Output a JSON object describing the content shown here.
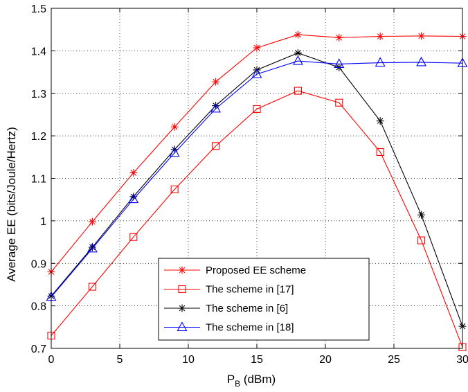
{
  "chart_data": {
    "type": "line",
    "xlabel_main": "P",
    "xlabel_sub": "B",
    "xlabel_rest": " (dBm)",
    "ylabel": "Average EE (bits/Joule/Hertz)",
    "xlim": [
      0,
      30
    ],
    "ylim": [
      0.7,
      1.5
    ],
    "xticks": [
      0,
      5,
      10,
      15,
      20,
      25,
      30
    ],
    "yticks": [
      0.7,
      0.8,
      0.9,
      1,
      1.1,
      1.2,
      1.3,
      1.4,
      1.5
    ],
    "ytick_labels": [
      "0.7",
      "0.8",
      "0.9",
      "1",
      "1.1",
      "1.2",
      "1.3",
      "1.4",
      "1.5"
    ],
    "grid": true,
    "legend_position": "bottom-center",
    "x": [
      0,
      3,
      6,
      9,
      12,
      15,
      18,
      21,
      24,
      27,
      30
    ],
    "series": [
      {
        "name": "Proposed EE scheme",
        "color": "#ff0000",
        "marker": "asterisk",
        "values": [
          0.88,
          0.998,
          1.113,
          1.221,
          1.327,
          1.407,
          1.438,
          1.431,
          1.434,
          1.435,
          1.434
        ]
      },
      {
        "name": "The scheme in [17]",
        "color": "#ff0000",
        "marker": "square",
        "values": [
          0.73,
          0.845,
          0.962,
          1.074,
          1.176,
          1.263,
          1.306,
          1.278,
          1.162,
          0.954,
          0.703
        ]
      },
      {
        "name": "The scheme in [6]",
        "color": "#000000",
        "marker": "asterisk",
        "values": [
          0.823,
          0.938,
          1.057,
          1.168,
          1.271,
          1.355,
          1.395,
          1.361,
          1.235,
          1.014,
          0.752
        ]
      },
      {
        "name": "The scheme in [18]",
        "color": "#0000ff",
        "marker": "triangle",
        "values": [
          0.821,
          0.935,
          1.051,
          1.16,
          1.264,
          1.345,
          1.376,
          1.369,
          1.372,
          1.373,
          1.371
        ]
      }
    ]
  }
}
